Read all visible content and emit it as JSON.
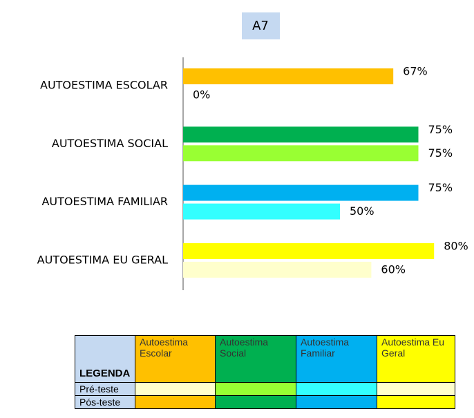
{
  "chart_data": {
    "type": "hbar",
    "title": "A7",
    "categories": [
      "AUTOESTIMA ESCOLAR",
      "AUTOESTIMA SOCIAL",
      "AUTOESTIMA FAMILIAR",
      "AUTOESTIMA EU GERAL"
    ],
    "xlim": [
      0,
      100
    ],
    "series": [
      {
        "name": "Pós-teste",
        "colors": [
          "#ffc000",
          "#00b050",
          "#00b0f0",
          "#ffff00"
        ],
        "values": [
          67,
          75,
          75,
          80
        ],
        "value_labels": [
          "67%",
          "75%",
          "75%",
          "80%"
        ]
      },
      {
        "name": "Pré-teste",
        "colors": [
          "#ffffcc",
          "#99ff33",
          "#33ffff",
          "#ffffcc"
        ],
        "values": [
          0,
          75,
          50,
          60
        ],
        "value_labels": [
          "0%",
          "75%",
          "50%",
          "60%"
        ]
      }
    ],
    "legend": {
      "title": "LEGENDA",
      "columns": [
        "Autoestima Escolar",
        "Autoestima Social",
        "Autoestima Familiar",
        "Autoestima Eu Geral"
      ]
    }
  }
}
